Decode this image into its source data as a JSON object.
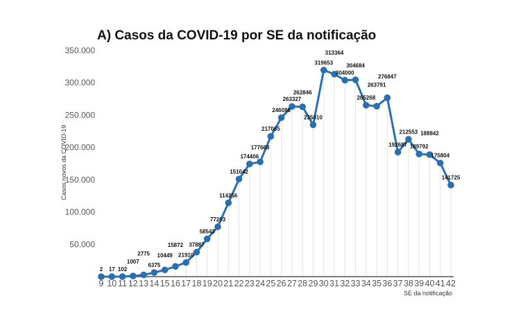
{
  "chart_data": {
    "type": "line",
    "title": "A) Casos da COVID-19 por SE da notificação",
    "xlabel": "SE da notificação",
    "ylabel": "Casos novos da COVID-19",
    "x": [
      9,
      10,
      11,
      12,
      13,
      14,
      15,
      16,
      17,
      18,
      19,
      20,
      21,
      22,
      23,
      24,
      25,
      26,
      27,
      28,
      29,
      30,
      31,
      32,
      33,
      34,
      35,
      36,
      37,
      38,
      39,
      40,
      41,
      42
    ],
    "values": [
      2,
      17,
      102,
      1007,
      2775,
      6375,
      10449,
      15872,
      21910,
      37887,
      58543,
      77203,
      114256,
      151042,
      174406,
      177668,
      217065,
      246088,
      263327,
      262846,
      235010,
      319653,
      313364,
      304000,
      304684,
      265268,
      263791,
      276847,
      192687,
      212553,
      189792,
      188842,
      175804,
      141725
    ],
    "data_labels": [
      "2",
      "17",
      "102",
      "1007",
      "2775",
      "6375",
      "10449",
      "15872",
      "21910",
      "37887",
      "58543",
      "77203",
      "114256",
      "151042",
      "174406",
      "177668",
      "217065",
      "246088",
      "263327",
      "262846",
      "235010",
      "319653",
      "313364",
      "304000",
      "304684",
      "265268",
      "263791",
      "276847",
      "192687",
      "212553",
      "189792",
      "188842",
      "175804",
      "141725"
    ],
    "ylim": [
      0,
      350000
    ],
    "yticks": [
      0,
      50000,
      100000,
      150000,
      200000,
      250000,
      300000,
      350000
    ],
    "ytick_labels": [
      "",
      "50.000",
      "100.000",
      "150.000",
      "200.000",
      "250.000",
      "300.000",
      "350.000"
    ],
    "grid": "vertical",
    "line_color": "#2a6fb0",
    "grid_color": "#e3e3e3"
  }
}
